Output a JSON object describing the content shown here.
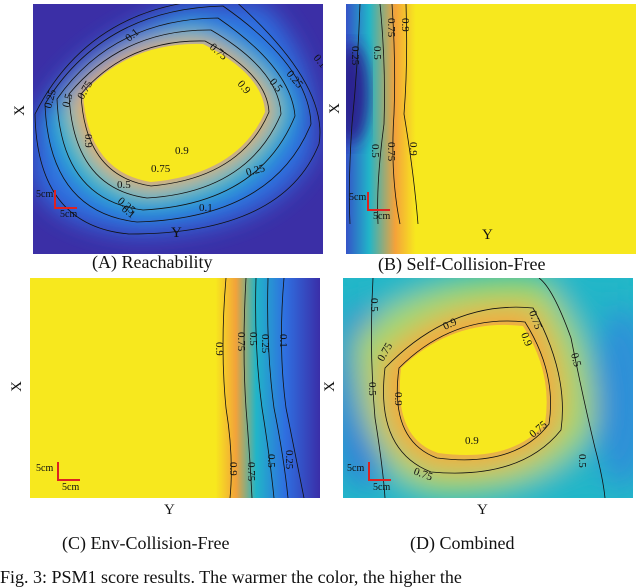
{
  "chart_data": [
    {
      "type": "heatmap",
      "caption": "(A) Reachability",
      "xlabel": "Y",
      "ylabel": "X",
      "scale_bar": [
        "5cm",
        "5cm"
      ],
      "contour_levels": [
        "0.1",
        "0.25",
        "0.5",
        "0.75",
        "0.9"
      ]
    },
    {
      "type": "heatmap",
      "caption": "(B) Self-Collision-Free",
      "xlabel": "Y",
      "ylabel": "X",
      "scale_bar": [
        "5cm",
        "5cm"
      ],
      "contour_levels": [
        "0.25",
        "0.5",
        "0.75",
        "0.9"
      ]
    },
    {
      "type": "heatmap",
      "caption": "(C) Env-Collision-Free",
      "xlabel": "Y",
      "ylabel": "X",
      "scale_bar": [
        "5cm",
        "5cm"
      ],
      "contour_levels": [
        "0.1",
        "0.25",
        "0.5",
        "0.75",
        "0.9"
      ]
    },
    {
      "type": "heatmap",
      "caption": "(D) Combined",
      "xlabel": "Y",
      "ylabel": "X",
      "scale_bar": [
        "5cm",
        "5cm"
      ],
      "contour_levels": [
        "0.5",
        "0.75",
        "0.9"
      ]
    }
  ],
  "colormap": {
    "low": "#3a2ea8",
    "mid": "#21b5c8",
    "high": "#f7e81e",
    "peak": "#f2a23a"
  },
  "figure_caption": "Fig. 3: PSM1 score results. The warmer the color, the higher the"
}
